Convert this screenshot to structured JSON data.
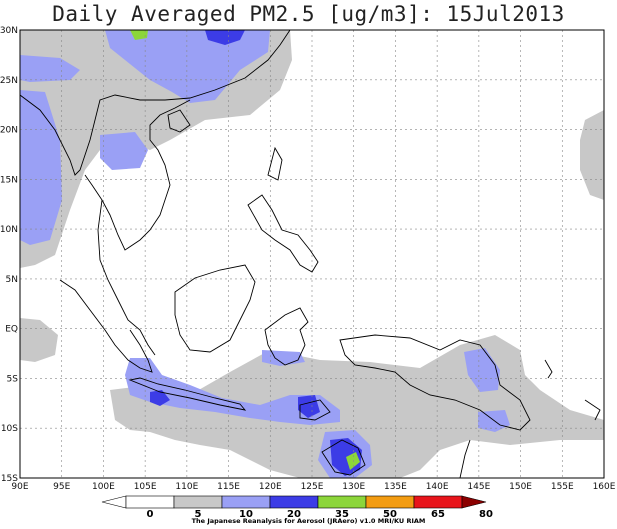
{
  "title": "Daily Averaged PM2.5 [ug/m3]: 15Jul2013",
  "lat_labels": [
    "30N",
    "25N",
    "20N",
    "15N",
    "10N",
    "5N",
    "EQ",
    "5S",
    "10S",
    "15S"
  ],
  "lon_labels": [
    "90E",
    "95E",
    "100E",
    "105E",
    "110E",
    "115E",
    "120E",
    "125E",
    "130E",
    "135E",
    "140E",
    "145E",
    "150E",
    "155E",
    "160E"
  ],
  "colorbar": {
    "labels": [
      "0",
      "5",
      "10",
      "20",
      "35",
      "50",
      "65",
      "80"
    ],
    "colors": [
      "#ffffff",
      "#ffffff",
      "#c8c8c8",
      "#9aa0f5",
      "#3c3ce6",
      "#8cd63a",
      "#f39c12",
      "#e8151b",
      "#8b0000"
    ]
  },
  "credit": "The Japanese Reanalysis for Aerosol (JRAero) v1.0 MRI/KU RIAM",
  "colors": {
    "level_5_10": "#c8c8c8",
    "level_10_20": "#9aa0f5",
    "level_20_35": "#3c3ce6",
    "level_35_50": "#8cd63a",
    "coast": "#000000",
    "grid": "#888888"
  }
}
